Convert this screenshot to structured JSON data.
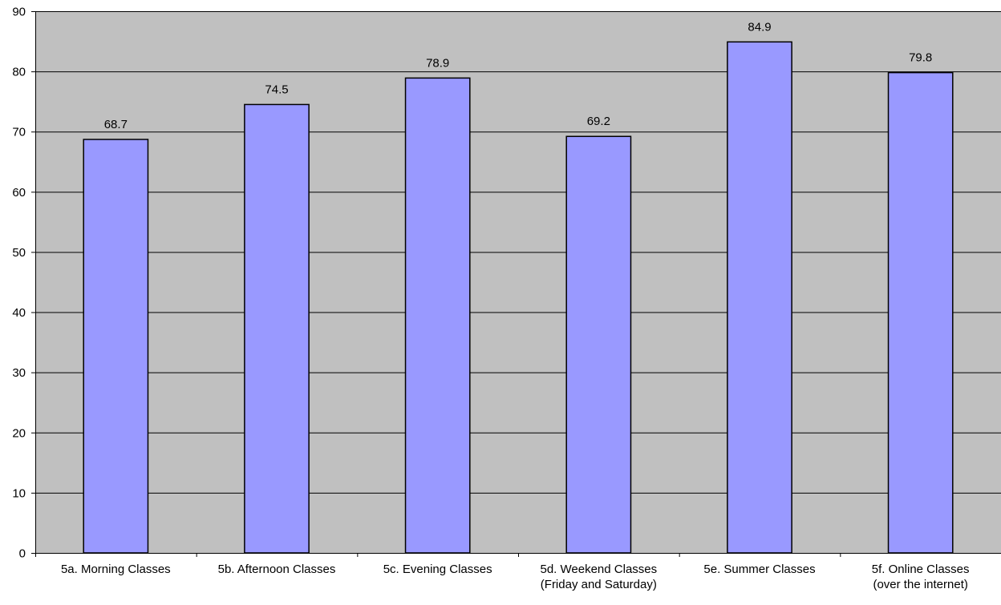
{
  "chart_data": {
    "type": "bar",
    "categories": [
      [
        "5a. Morning Classes"
      ],
      [
        "5b. Afternoon Classes"
      ],
      [
        "5c. Evening Classes"
      ],
      [
        "5d. Weekend Classes",
        "(Friday and Saturday)"
      ],
      [
        "5e. Summer Classes"
      ],
      [
        "5f. Online Classes",
        "(over the internet)"
      ]
    ],
    "values": [
      68.7,
      74.5,
      78.9,
      69.2,
      84.9,
      79.8
    ],
    "data_labels": [
      "68.7",
      "74.5",
      "78.9",
      "69.2",
      "84.9",
      "79.8"
    ],
    "ylim": [
      0,
      90
    ],
    "yticks": [
      0,
      10,
      20,
      30,
      40,
      50,
      60,
      70,
      80,
      90
    ],
    "grid": true,
    "legend": "none",
    "colors": {
      "plot_background": "#c0c0c0",
      "bar_fill": "#9999ff",
      "bar_stroke": "#000000",
      "gridline": "#000000",
      "text": "#000000"
    }
  }
}
